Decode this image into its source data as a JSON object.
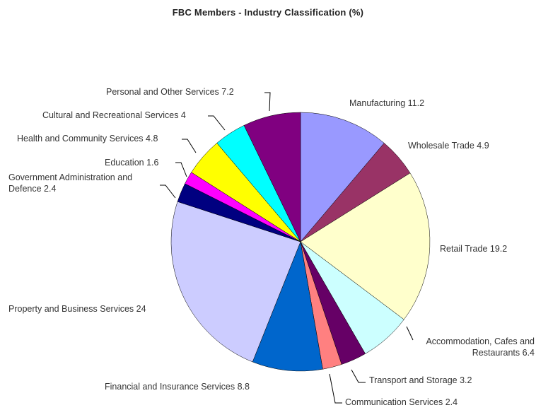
{
  "chart_data": {
    "type": "pie",
    "title": "FBC Members - Industry Classification (%)",
    "slices": [
      {
        "label": "Manufacturing",
        "value": 11.2,
        "color": "#9999ff",
        "text_lines": [
          "Manufacturing 11.2"
        ]
      },
      {
        "label": "Wholesale Trade",
        "value": 4.9,
        "color": "#993366",
        "text_lines": [
          "Wholesale Trade 4.9"
        ]
      },
      {
        "label": "Retail Trade",
        "value": 19.2,
        "color": "#ffffcc",
        "text_lines": [
          "Retail Trade 19.2"
        ]
      },
      {
        "label": "Accommodation, Cafes and Restaurants",
        "value": 6.4,
        "color": "#ccffff",
        "text_lines": [
          "Accommodation, Cafes and",
          "Restaurants 6.4"
        ]
      },
      {
        "label": "Transport and Storage",
        "value": 3.2,
        "color": "#660066",
        "text_lines": [
          "Transport and Storage 3.2"
        ]
      },
      {
        "label": "Communication Services",
        "value": 2.4,
        "color": "#ff8080",
        "text_lines": [
          "Communication Services 2.4"
        ]
      },
      {
        "label": "Financial and Insurance Services",
        "value": 8.8,
        "color": "#0066cc",
        "text_lines": [
          "Financial and Insurance Services 8.8"
        ]
      },
      {
        "label": "Property and Business Services",
        "value": 24,
        "color": "#ccccff",
        "text_lines": [
          "Property and Business Services 24"
        ]
      },
      {
        "label": "Government Administration and Defence",
        "value": 2.4,
        "color": "#000080",
        "text_lines": [
          "Government Administration and",
          "Defence 2.4"
        ]
      },
      {
        "label": "Education",
        "value": 1.6,
        "color": "#ff00ff",
        "text_lines": [
          "Education 1.6"
        ]
      },
      {
        "label": "Health and Community Services",
        "value": 4.8,
        "color": "#ffff00",
        "text_lines": [
          "Health and Community Services 4.8"
        ]
      },
      {
        "label": "Cultural and Recreational Services",
        "value": 4,
        "color": "#00ffff",
        "text_lines": [
          "Cultural and Recreational Services 4"
        ]
      },
      {
        "label": "Personal and Other Services",
        "value": 7.2,
        "color": "#800080",
        "text_lines": [
          "Personal and Other Services 7.2"
        ]
      }
    ],
    "legend": "none"
  }
}
